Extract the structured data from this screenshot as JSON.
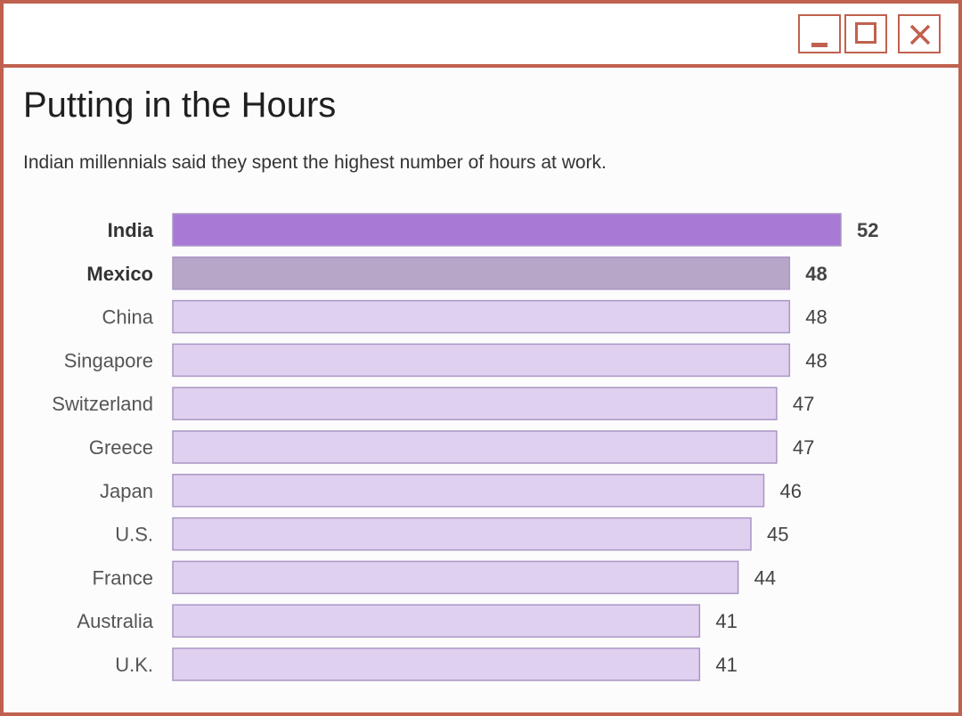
{
  "window": {
    "controls": {
      "minimize": "minimize",
      "maximize": "maximize",
      "close": "close"
    },
    "border_color": "#c0614f"
  },
  "chart_data": {
    "type": "bar",
    "orientation": "horizontal",
    "title": "Putting in the Hours",
    "subtitle": "Indian millennials said they spent the highest number of hours at work.",
    "categories": [
      "India",
      "Mexico",
      "China",
      "Singapore",
      "Switzerland",
      "Greece",
      "Japan",
      "U.S.",
      "France",
      "Australia",
      "U.K."
    ],
    "values": [
      52,
      48,
      48,
      48,
      47,
      47,
      46,
      45,
      44,
      41,
      41
    ],
    "highlighted": [
      "India",
      "Mexico"
    ],
    "colors": {
      "India": "#a87ad6",
      "Mexico": "#b8a6c8",
      "default": "#e0d0f0",
      "stroke": "#a996c4"
    },
    "xlim": [
      0,
      52
    ],
    "grid": false,
    "legend": "none"
  }
}
